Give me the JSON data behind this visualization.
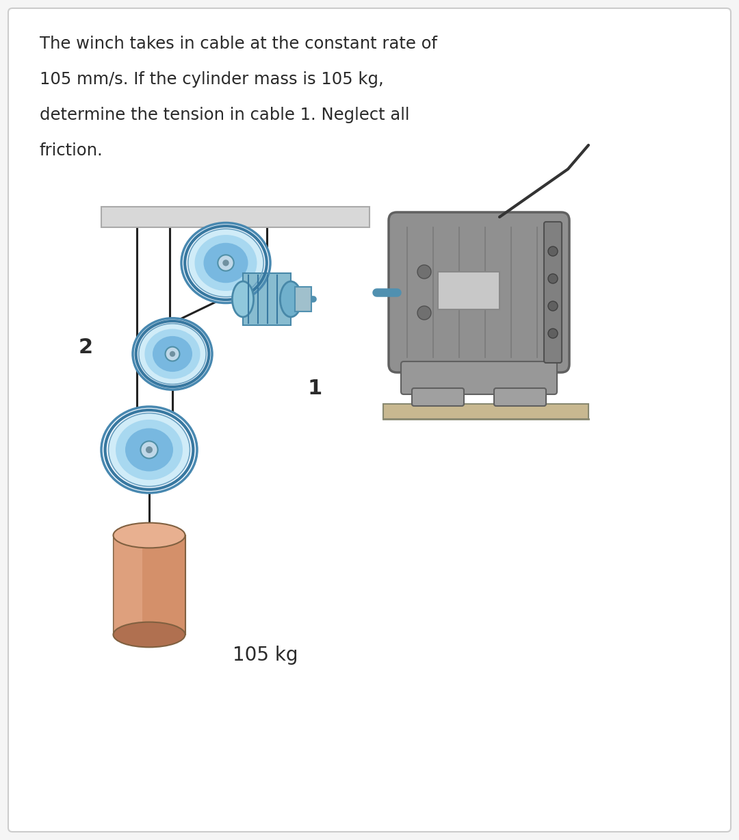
{
  "background_color": "#f5f5f5",
  "card_color": "#ffffff",
  "text_color": "#2a2a2a",
  "problem_text_line1": "The winch takes in cable at the constant rate of",
  "problem_text_line2": "105 mm/s. If the cylinder mass is 105 kg,",
  "problem_text_line3": "determine the tension in cable 1. Neglect all",
  "problem_text_line4": "friction.",
  "label_2": "2",
  "label_1": "1",
  "label_mass": "105 kg",
  "pulley_color_light": "#d8eef8",
  "pulley_color_mid": "#a8d4ee",
  "pulley_color_dark": "#78b8e0",
  "pulley_rim_color": "#5090b8",
  "cable_color": "#222222",
  "ceiling_color": "#d8d8d8",
  "ceiling_edge_color": "#aaaaaa",
  "mass_color_main": "#d4906a",
  "mass_color_light": "#e8b090",
  "mass_color_dark": "#b07050",
  "mass_edge_color": "#806040",
  "motor_body_color": "#909090",
  "motor_face_color": "#888888",
  "motor_dark": "#606060",
  "motor_light": "#b0b0b0",
  "motor_base_color": "#a0a0a0",
  "winch_color": "#88c0d8",
  "winch_dark": "#5090b0",
  "ground_color": "#c8b890",
  "text_fontsize": 17.5,
  "label_fontsize": 22,
  "mass_label_fontsize": 20
}
